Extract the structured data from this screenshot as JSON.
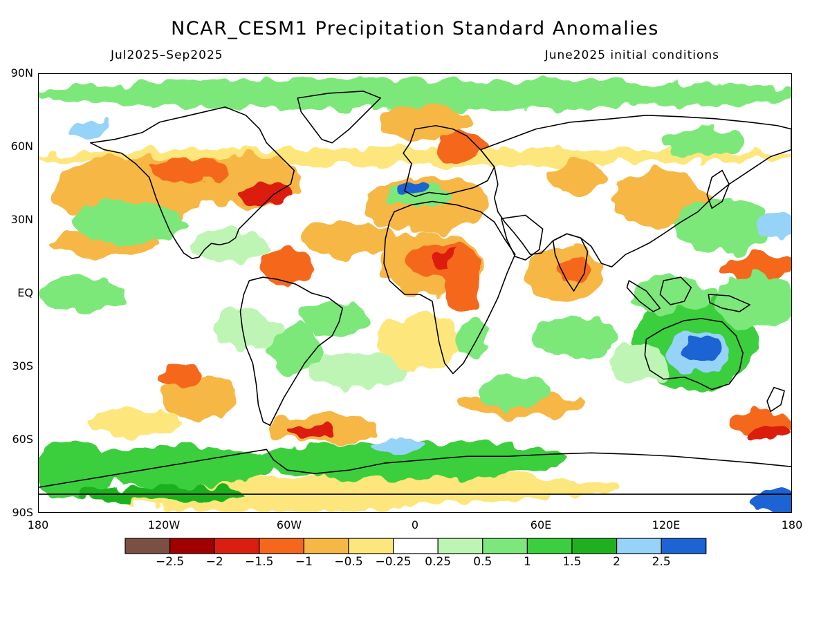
{
  "header": {
    "title": "NCAR_CESM1 Precipitation Standard Anomalies",
    "period": "Jul2025–Sep2025",
    "init": "June2025 initial conditions"
  },
  "axes": {
    "lat_labels": [
      "90N",
      "60N",
      "30N",
      "EQ",
      "30S",
      "60S",
      "90S"
    ],
    "lon_labels": [
      "180",
      "120W",
      "60W",
      "0",
      "60E",
      "120E",
      "180"
    ]
  },
  "colorbar": {
    "colors": [
      "#7b4f44",
      "#a00000",
      "#dc1e10",
      "#f5671b",
      "#f6b745",
      "#fde77c",
      "#ffffff",
      "#bef5b4",
      "#7ce87a",
      "#3bce3e",
      "#1fb11d",
      "#96d3f8",
      "#1c63d3"
    ],
    "labels": [
      "−2.5",
      "−2",
      "−1.5",
      "−1",
      "−0.5",
      "−0.25",
      "0.25",
      "0.5",
      "1",
      "1.5",
      "2",
      "2.5"
    ]
  },
  "palette": {
    "coast": "#000000",
    "dry_strong": "#dc1e10",
    "dry_mod": "#f5671b",
    "dry_weak": "#f6b745",
    "dry_slight": "#fde77c",
    "wet_weak": "#bef5b4",
    "wet_mod": "#7ce87a",
    "wet_strong": "#3bce3e",
    "wet_very": "#1fb11d",
    "wet_extreme_light": "#96d3f8",
    "wet_extreme": "#1c63d3"
  }
}
